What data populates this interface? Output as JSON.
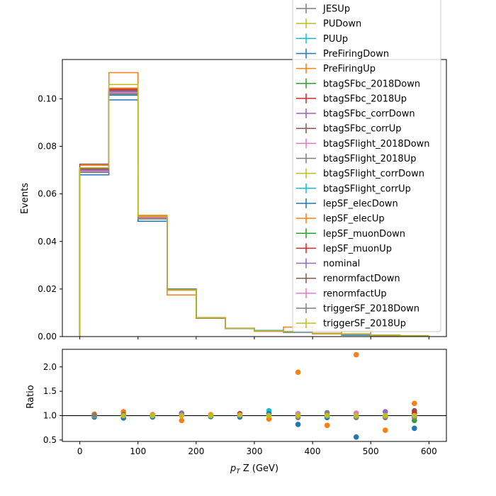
{
  "chart_data": [
    {
      "type": "step-histogram",
      "ylabel": "Events",
      "xlim": [
        -30,
        630
      ],
      "ylim": [
        0,
        0.1165
      ],
      "xticks": [
        0,
        100,
        200,
        300,
        400,
        500,
        600
      ],
      "yticks": [
        "0.00",
        "0.02",
        "0.04",
        "0.06",
        "0.08",
        "0.10"
      ],
      "bin_edges": [
        0,
        50,
        100,
        150,
        200,
        250,
        300,
        350,
        400,
        450,
        500,
        550,
        600
      ],
      "base_values": [
        0.07,
        0.103,
        0.05,
        0.0195,
        0.0078,
        0.0034,
        0.0024,
        0.0021,
        0.0013,
        0.001,
        0.0006,
        0.0003
      ],
      "series": [
        {
          "name": "JESUp",
          "color": "#7f7f7f",
          "values": [
            0.0705,
            0.1025,
            0.05,
            0.0195,
            0.0078,
            0.0034,
            0.0024,
            0.0021,
            0.0013,
            0.001,
            0.0006,
            0.0003
          ]
        },
        {
          "name": "PUDown",
          "color": "#bcbd22",
          "values": [
            0.07,
            0.1035,
            0.05,
            0.0195,
            0.0078,
            0.0034,
            0.0024,
            0.0021,
            0.0013,
            0.001,
            0.0006,
            0.0003
          ]
        },
        {
          "name": "PUUp",
          "color": "#17becf",
          "values": [
            0.0695,
            0.1025,
            0.05,
            0.02,
            0.0078,
            0.0034,
            0.0026,
            0.0021,
            0.0013,
            0.001,
            0.0006,
            0.0003
          ]
        },
        {
          "name": "PreFiringDown",
          "color": "#1f77b4",
          "values": [
            0.068,
            0.0995,
            0.0485,
            0.02,
            0.0077,
            0.0033,
            0.0024,
            0.0018,
            0.0012,
            0.0006,
            0.0005,
            0.0002
          ]
        },
        {
          "name": "PreFiringUp",
          "color": "#ff7f0e",
          "values": [
            0.072,
            0.111,
            0.051,
            0.0175,
            0.008,
            0.0035,
            0.0022,
            0.004,
            0.0011,
            0.0023,
            0.0004,
            0.0004
          ]
        },
        {
          "name": "btagSFbc_2018Down",
          "color": "#2ca02c",
          "values": [
            0.07,
            0.103,
            0.05,
            0.0195,
            0.0078,
            0.0034,
            0.0024,
            0.0021,
            0.0013,
            0.001,
            0.0006,
            0.0003
          ]
        },
        {
          "name": "btagSFbc_2018Up",
          "color": "#d62728",
          "values": [
            0.071,
            0.104,
            0.0505,
            0.0195,
            0.0078,
            0.0035,
            0.0024,
            0.0021,
            0.0013,
            0.001,
            0.0006,
            0.0003
          ]
        },
        {
          "name": "btagSFbc_corrDown",
          "color": "#9467bd",
          "values": [
            0.07,
            0.103,
            0.05,
            0.0195,
            0.0078,
            0.0034,
            0.0024,
            0.0021,
            0.0013,
            0.001,
            0.0006,
            0.0003
          ]
        },
        {
          "name": "btagSFbc_corrUp",
          "color": "#8c564b",
          "values": [
            0.0725,
            0.1045,
            0.0505,
            0.0195,
            0.0078,
            0.0034,
            0.0024,
            0.0021,
            0.0013,
            0.001,
            0.0006,
            0.0003
          ]
        },
        {
          "name": "btagSFlight_2018Down",
          "color": "#e377c2",
          "values": [
            0.07,
            0.103,
            0.05,
            0.0195,
            0.0078,
            0.0034,
            0.0024,
            0.0021,
            0.0013,
            0.001,
            0.0006,
            0.0003
          ]
        },
        {
          "name": "btagSFlight_2018Up",
          "color": "#7f7f7f",
          "values": [
            0.07,
            0.103,
            0.05,
            0.0195,
            0.0078,
            0.0034,
            0.0024,
            0.0021,
            0.0013,
            0.001,
            0.0006,
            0.0003
          ]
        },
        {
          "name": "btagSFlight_corrDown",
          "color": "#bcbd22",
          "values": [
            0.07,
            0.103,
            0.05,
            0.0195,
            0.0078,
            0.0034,
            0.0024,
            0.0021,
            0.0013,
            0.001,
            0.0006,
            0.0003
          ]
        },
        {
          "name": "btagSFlight_corrUp",
          "color": "#17becf",
          "values": [
            0.07,
            0.103,
            0.05,
            0.0195,
            0.0078,
            0.0034,
            0.0024,
            0.0021,
            0.0013,
            0.001,
            0.0006,
            0.0003
          ]
        },
        {
          "name": "lepSF_elecDown",
          "color": "#1f77b4",
          "values": [
            0.069,
            0.1015,
            0.0495,
            0.0195,
            0.0077,
            0.0034,
            0.0024,
            0.0021,
            0.0013,
            0.001,
            0.0006,
            0.0003
          ]
        },
        {
          "name": "lepSF_elecUp",
          "color": "#ff7f0e",
          "values": [
            0.071,
            0.1045,
            0.0505,
            0.0198,
            0.0079,
            0.0034,
            0.0024,
            0.0021,
            0.0013,
            0.001,
            0.0006,
            0.0003
          ]
        },
        {
          "name": "lepSF_muonDown",
          "color": "#2ca02c",
          "values": [
            0.0695,
            0.102,
            0.0498,
            0.0195,
            0.0078,
            0.0034,
            0.0024,
            0.0021,
            0.0013,
            0.001,
            0.0006,
            0.0003
          ]
        },
        {
          "name": "lepSF_muonUp",
          "color": "#d62728",
          "values": [
            0.0705,
            0.104,
            0.0502,
            0.0195,
            0.0078,
            0.0034,
            0.0024,
            0.0021,
            0.0013,
            0.001,
            0.0006,
            0.0003
          ]
        },
        {
          "name": "nominal",
          "color": "#9467bd",
          "values": [
            0.07,
            0.103,
            0.05,
            0.0195,
            0.0078,
            0.0034,
            0.0024,
            0.0021,
            0.0013,
            0.001,
            0.0006,
            0.0003
          ]
        },
        {
          "name": "renormfactDown",
          "color": "#8c564b",
          "values": [
            0.0705,
            0.1035,
            0.05,
            0.0195,
            0.0078,
            0.0034,
            0.0024,
            0.0021,
            0.0013,
            0.001,
            0.0006,
            0.0003
          ]
        },
        {
          "name": "renormfactUp",
          "color": "#e377c2",
          "values": [
            0.0695,
            0.1025,
            0.05,
            0.0195,
            0.0078,
            0.0034,
            0.0024,
            0.0021,
            0.0013,
            0.001,
            0.0006,
            0.0003
          ]
        },
        {
          "name": "triggerSF_2018Down",
          "color": "#7f7f7f",
          "values": [
            0.069,
            0.102,
            0.0495,
            0.0195,
            0.0077,
            0.0034,
            0.0024,
            0.0021,
            0.0013,
            0.001,
            0.0006,
            0.0003
          ]
        },
        {
          "name": "triggerSF_2018Up",
          "color": "#bcbd22",
          "values": [
            0.071,
            0.106,
            0.0505,
            0.0195,
            0.0079,
            0.0034,
            0.0024,
            0.0021,
            0.0013,
            0.001,
            0.0006,
            0.0003
          ]
        }
      ]
    },
    {
      "type": "scatter",
      "ylabel": "Ratio",
      "xlabel_prefix": "p",
      "xlabel_sub": "T",
      "xlabel_rest": " Z (GeV)",
      "xlim": [
        -30,
        630
      ],
      "ylim": [
        0.47,
        2.36
      ],
      "xticks": [
        0,
        100,
        200,
        300,
        400,
        500,
        600
      ],
      "yticks": [
        "0.5",
        "1.0",
        "1.5",
        "2.0"
      ],
      "reference_line": 1.0,
      "points": [
        {
          "x": 25,
          "y": 0.97,
          "color": "#1f77b4"
        },
        {
          "x": 25,
          "y": 1.03,
          "color": "#ff7f0e"
        },
        {
          "x": 25,
          "y": 1.0,
          "color": "#bcbd22"
        },
        {
          "x": 25,
          "y": 1.01,
          "color": "#7f7f7f"
        },
        {
          "x": 75,
          "y": 0.95,
          "color": "#1f77b4"
        },
        {
          "x": 75,
          "y": 1.08,
          "color": "#ff7f0e"
        },
        {
          "x": 75,
          "y": 1.02,
          "color": "#8c564b"
        },
        {
          "x": 75,
          "y": 1.0,
          "color": "#bcbd22"
        },
        {
          "x": 125,
          "y": 0.97,
          "color": "#1f77b4"
        },
        {
          "x": 125,
          "y": 1.02,
          "color": "#ff7f0e"
        },
        {
          "x": 125,
          "y": 1.0,
          "color": "#bcbd22"
        },
        {
          "x": 175,
          "y": 0.9,
          "color": "#ff7f0e"
        },
        {
          "x": 175,
          "y": 1.03,
          "color": "#1f77b4"
        },
        {
          "x": 175,
          "y": 1.05,
          "color": "#9467bd"
        },
        {
          "x": 175,
          "y": 1.0,
          "color": "#bcbd22"
        },
        {
          "x": 225,
          "y": 0.98,
          "color": "#1f77b4"
        },
        {
          "x": 225,
          "y": 1.02,
          "color": "#ff7f0e"
        },
        {
          "x": 225,
          "y": 1.0,
          "color": "#bcbd22"
        },
        {
          "x": 275,
          "y": 0.97,
          "color": "#1f77b4"
        },
        {
          "x": 275,
          "y": 1.04,
          "color": "#d62728"
        },
        {
          "x": 275,
          "y": 1.01,
          "color": "#bcbd22"
        },
        {
          "x": 325,
          "y": 0.93,
          "color": "#ff7f0e"
        },
        {
          "x": 325,
          "y": 1.1,
          "color": "#17becf"
        },
        {
          "x": 325,
          "y": 1.04,
          "color": "#1f77b4"
        },
        {
          "x": 325,
          "y": 1.0,
          "color": "#bcbd22"
        },
        {
          "x": 375,
          "y": 0.82,
          "color": "#1f77b4"
        },
        {
          "x": 375,
          "y": 1.89,
          "color": "#ff7f0e"
        },
        {
          "x": 375,
          "y": 0.96,
          "color": "#7f7f7f"
        },
        {
          "x": 375,
          "y": 1.04,
          "color": "#e377c2"
        },
        {
          "x": 375,
          "y": 1.0,
          "color": "#bcbd22"
        },
        {
          "x": 425,
          "y": 0.8,
          "color": "#ff7f0e"
        },
        {
          "x": 425,
          "y": 0.96,
          "color": "#1f77b4"
        },
        {
          "x": 425,
          "y": 1.06,
          "color": "#7f7f7f"
        },
        {
          "x": 425,
          "y": 1.0,
          "color": "#bcbd22"
        },
        {
          "x": 475,
          "y": 0.56,
          "color": "#1f77b4"
        },
        {
          "x": 475,
          "y": 2.25,
          "color": "#ff7f0e"
        },
        {
          "x": 475,
          "y": 1.05,
          "color": "#e377c2"
        },
        {
          "x": 475,
          "y": 0.96,
          "color": "#7f7f7f"
        },
        {
          "x": 475,
          "y": 1.0,
          "color": "#bcbd22"
        },
        {
          "x": 525,
          "y": 0.7,
          "color": "#ff7f0e"
        },
        {
          "x": 525,
          "y": 1.08,
          "color": "#9467bd"
        },
        {
          "x": 525,
          "y": 0.96,
          "color": "#7f7f7f"
        },
        {
          "x": 525,
          "y": 1.0,
          "color": "#bcbd22"
        },
        {
          "x": 575,
          "y": 0.74,
          "color": "#1f77b4"
        },
        {
          "x": 575,
          "y": 1.25,
          "color": "#ff7f0e"
        },
        {
          "x": 575,
          "y": 0.9,
          "color": "#2ca02c"
        },
        {
          "x": 575,
          "y": 1.1,
          "color": "#8c564b"
        },
        {
          "x": 575,
          "y": 1.05,
          "color": "#d62728"
        },
        {
          "x": 575,
          "y": 0.96,
          "color": "#7f7f7f"
        },
        {
          "x": 575,
          "y": 1.0,
          "color": "#bcbd22"
        }
      ]
    }
  ]
}
